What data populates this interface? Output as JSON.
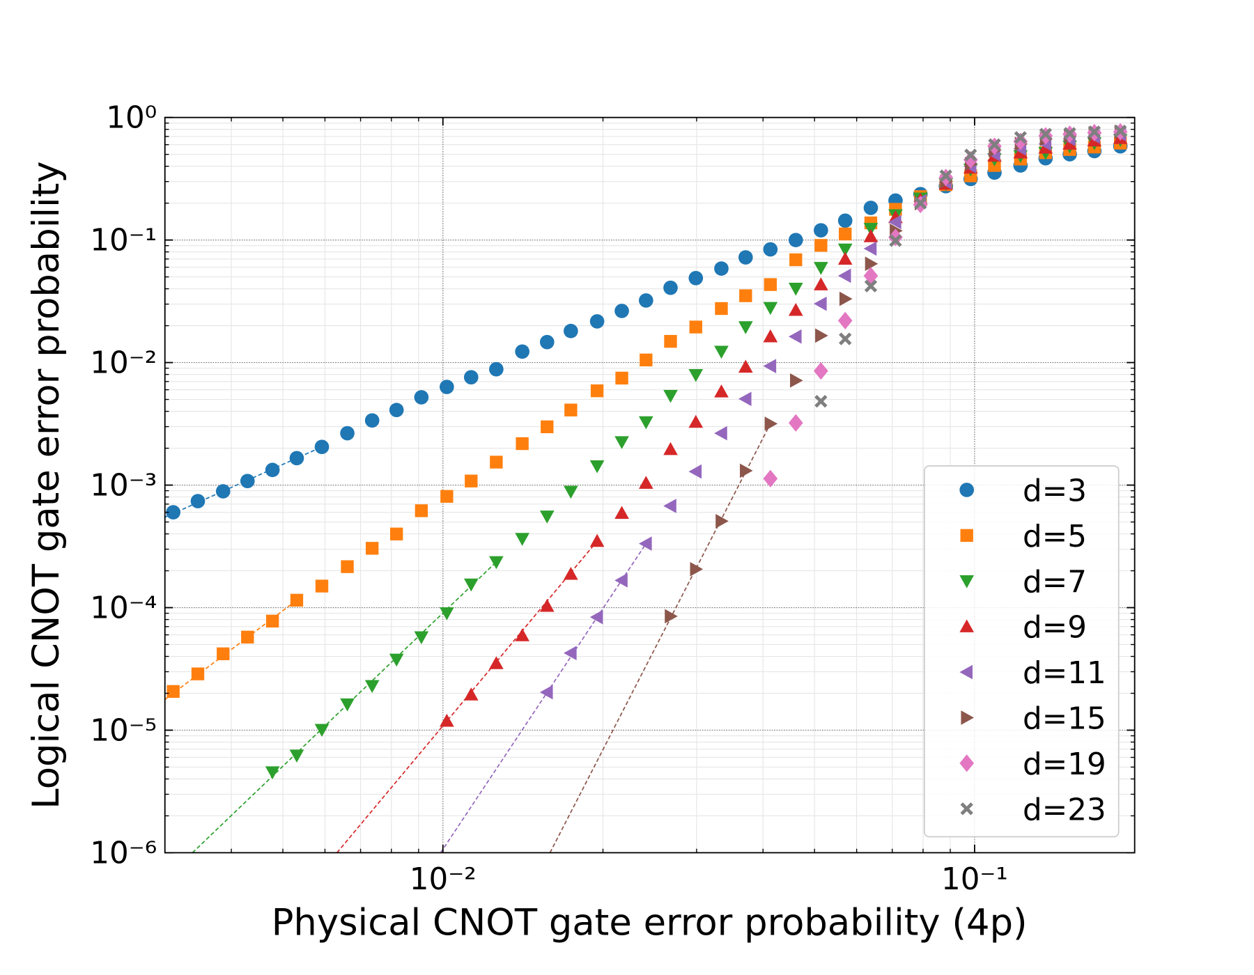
{
  "chart_data": {
    "type": "scatter",
    "xlabel": "Physical CNOT gate error probability (4p)",
    "ylabel": "Logical CNOT gate error probability",
    "xscale": "log",
    "yscale": "log",
    "xlim": [
      0.003,
      0.2
    ],
    "ylim": [
      1e-06,
      1
    ],
    "xticks": [
      {
        "value": 0.01,
        "label": "10⁻²"
      },
      {
        "value": 0.1,
        "label": "10⁻¹"
      }
    ],
    "yticks": [
      {
        "value": 1e-06,
        "label": "10⁻⁶"
      },
      {
        "value": 1e-05,
        "label": "10⁻⁵"
      },
      {
        "value": 0.0001,
        "label": "10⁻⁴"
      },
      {
        "value": 0.001,
        "label": "10⁻³"
      },
      {
        "value": 0.01,
        "label": "10⁻²"
      },
      {
        "value": 0.1,
        "label": "10⁻¹"
      },
      {
        "value": 1,
        "label": "10⁰"
      }
    ],
    "xminor": [
      0.004,
      0.005,
      0.006,
      0.007,
      0.008,
      0.009,
      0.02,
      0.03,
      0.04,
      0.05,
      0.06,
      0.07,
      0.08,
      0.09,
      0.2
    ],
    "yminor": [
      2e-06,
      3e-06,
      4e-06,
      5e-06,
      6e-06,
      7e-06,
      8e-06,
      9e-06,
      2e-05,
      3e-05,
      4e-05,
      5e-05,
      6e-05,
      7e-05,
      8e-05,
      9e-05,
      0.0002,
      0.0003,
      0.0004,
      0.0005,
      0.0006,
      0.0007,
      0.0008,
      0.0009,
      0.002,
      0.003,
      0.004,
      0.005,
      0.006,
      0.007,
      0.008,
      0.009,
      0.02,
      0.03,
      0.04,
      0.05,
      0.06,
      0.07,
      0.08,
      0.09,
      0.2,
      0.3,
      0.4,
      0.5,
      0.6,
      0.7,
      0.8,
      0.9
    ],
    "grid": true,
    "legend": "lower right",
    "x": [
      0.00311,
      0.00346,
      0.00386,
      0.00429,
      0.00478,
      0.00531,
      0.00592,
      0.00661,
      0.00736,
      0.00818,
      0.00911,
      0.01017,
      0.0113,
      0.0126,
      0.0141,
      0.0157,
      0.0174,
      0.0195,
      0.0217,
      0.0241,
      0.0268,
      0.0299,
      0.0334,
      0.0371,
      0.0413,
      0.0461,
      0.0514,
      0.0571,
      0.0638,
      0.071,
      0.0791,
      0.0883,
      0.0983,
      0.109,
      0.122,
      0.136,
      0.151,
      0.168,
      0.188
    ],
    "series": [
      {
        "name": "d=3",
        "color": "#1f77b4",
        "marker": "o",
        "values": [
          0.0006,
          0.00074,
          0.00089,
          0.00108,
          0.00133,
          0.00166,
          0.00205,
          0.00265,
          0.00337,
          0.0041,
          0.00521,
          0.00633,
          0.00759,
          0.00882,
          0.0123,
          0.0147,
          0.0181,
          0.0217,
          0.0264,
          0.0321,
          0.0408,
          0.0489,
          0.0585,
          0.0722,
          0.0839,
          0.1,
          0.12,
          0.144,
          0.183,
          0.21,
          0.237,
          0.275,
          0.315,
          0.355,
          0.406,
          0.465,
          0.501,
          0.532,
          0.582
        ],
        "fit_x": [
          0.003,
          0.00592
        ],
        "fit_values": [
          0.000547,
          0.00205
        ]
      },
      {
        "name": "d=5",
        "color": "#ff7f0e",
        "marker": "s",
        "values": [
          2.07e-05,
          2.88e-05,
          4.2e-05,
          5.75e-05,
          7.77e-05,
          0.000115,
          0.00015,
          0.000216,
          0.000305,
          0.000399,
          0.000618,
          0.000809,
          0.00108,
          0.00154,
          0.00218,
          0.00299,
          0.0041,
          0.00588,
          0.00747,
          0.0105,
          0.0149,
          0.0195,
          0.0276,
          0.0351,
          0.0433,
          0.069,
          0.0904,
          0.112,
          0.138,
          0.178,
          0.226,
          0.283,
          0.334,
          0.406,
          0.458,
          0.516,
          0.548,
          0.574,
          0.618
        ],
        "fit_x": [
          0.003,
          0.00531
        ],
        "fit_values": [
          1.78e-05,
          0.000115
        ]
      },
      {
        "name": "d=7",
        "color": "#2ca02c",
        "marker": "v",
        "values": [
          null,
          null,
          null,
          null,
          4.55e-06,
          6.23e-06,
          1.01e-05,
          1.63e-05,
          2.3e-05,
          3.78e-05,
          5.75e-05,
          9.03e-05,
          0.000155,
          0.000236,
          0.000365,
          0.000556,
          0.000886,
          0.00143,
          0.00225,
          0.00327,
          0.00537,
          0.00794,
          0.0123,
          0.0195,
          0.028,
          0.0402,
          0.0594,
          0.0839,
          0.124,
          0.16,
          0.219,
          0.287,
          0.377,
          0.458,
          0.486,
          0.516,
          0.582,
          0.618,
          0.657
        ],
        "fit_x": [
          0.00338,
          0.0126
        ],
        "fit_values": [
          1e-06,
          0.000236
        ]
      },
      {
        "name": "d=9",
        "color": "#d62728",
        "marker": "^",
        "values": [
          null,
          null,
          null,
          null,
          null,
          null,
          null,
          null,
          null,
          null,
          null,
          1.19e-05,
          1.95e-05,
          3.51e-05,
          5.93e-05,
          0.000103,
          0.000188,
          0.000349,
          0.000591,
          0.00104,
          0.00196,
          0.00327,
          0.00579,
          0.00922,
          0.0163,
          0.0268,
          0.0433,
          0.07,
          0.107,
          0.153,
          0.213,
          0.287,
          0.388,
          0.486,
          0.516,
          0.565,
          0.609,
          0.647,
          0.677
        ],
        "fit_x": [
          0.00632,
          0.0195
        ],
        "fit_values": [
          1e-06,
          0.000349
        ]
      },
      {
        "name": "d=11",
        "color": "#9467bd",
        "marker": "<",
        "values": [
          null,
          null,
          null,
          null,
          null,
          null,
          null,
          null,
          null,
          null,
          null,
          null,
          null,
          null,
          null,
          2.04e-05,
          4.26e-05,
          8.37e-05,
          0.000167,
          0.000333,
          0.000676,
          0.00129,
          0.00265,
          0.00505,
          0.00936,
          0.0163,
          0.0302,
          0.0511,
          0.0851,
          0.14,
          0.207,
          0.296,
          0.4,
          0.501,
          0.557,
          0.609,
          0.667,
          0.697,
          0.73
        ],
        "fit_x": [
          0.0099,
          0.0241
        ],
        "fit_values": [
          1e-06,
          0.000333
        ]
      },
      {
        "name": "d=15",
        "color": "#8c564b",
        "marker": ">",
        "values": [
          null,
          null,
          null,
          null,
          null,
          null,
          null,
          null,
          null,
          null,
          null,
          null,
          null,
          null,
          null,
          null,
          null,
          null,
          null,
          null,
          8.51e-05,
          0.000206,
          0.000508,
          0.00131,
          0.00317,
          0.00714,
          0.0166,
          0.0331,
          0.064,
          0.119,
          0.2,
          0.301,
          0.418,
          0.541,
          0.609,
          0.667,
          0.708,
          0.741,
          0.763
        ],
        "fit_x": [
          0.0159,
          0.0413
        ],
        "fit_values": [
          1e-06,
          0.00317
        ]
      },
      {
        "name": "d=19",
        "color": "#e377c2",
        "marker": "D",
        "values": [
          null,
          null,
          null,
          null,
          null,
          null,
          null,
          null,
          null,
          null,
          null,
          null,
          null,
          null,
          null,
          null,
          null,
          null,
          null,
          null,
          null,
          null,
          null,
          null,
          0.00113,
          0.00322,
          0.00855,
          0.022,
          0.0511,
          0.105,
          0.195,
          0.324,
          0.451,
          0.582,
          0.637,
          0.708,
          0.73,
          0.752,
          0.763
        ]
      },
      {
        "name": "d=23",
        "color": "#7f7f7f",
        "marker": "X",
        "values": [
          null,
          null,
          null,
          null,
          null,
          null,
          null,
          null,
          null,
          null,
          null,
          null,
          null,
          null,
          null,
          null,
          null,
          null,
          null,
          null,
          null,
          null,
          null,
          null,
          null,
          null,
          0.00483,
          0.0156,
          0.0421,
          0.0989,
          0.2,
          0.334,
          0.494,
          0.6,
          0.687,
          0.73,
          0.741,
          0.763,
          0.775
        ]
      }
    ]
  }
}
